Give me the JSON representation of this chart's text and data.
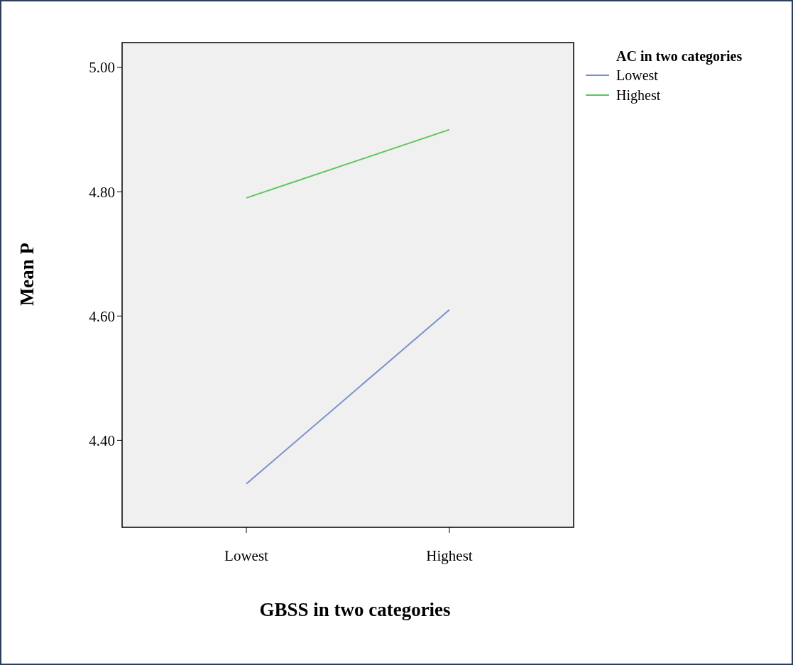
{
  "chart_data": {
    "type": "line",
    "xlabel": "GBSS in two categories",
    "ylabel": "Mean P",
    "legend_title": "AC in two categories",
    "categories": [
      "Lowest",
      "Highest"
    ],
    "series": [
      {
        "name": "Lowest",
        "color": "#7b8fcf",
        "values": [
          4.33,
          4.61
        ]
      },
      {
        "name": "Highest",
        "color": "#5cc65a",
        "values": [
          4.79,
          4.9
        ]
      }
    ],
    "ylim": [
      4.26,
      5.04
    ],
    "yticks": [
      {
        "value": 4.4,
        "label": "4.40"
      },
      {
        "value": 4.6,
        "label": "4.60"
      },
      {
        "value": 4.8,
        "label": "4.80"
      },
      {
        "value": 5,
        "label": "5.00"
      }
    ],
    "grid": false,
    "legend": "right",
    "marker": "none",
    "line_style": "solid"
  }
}
